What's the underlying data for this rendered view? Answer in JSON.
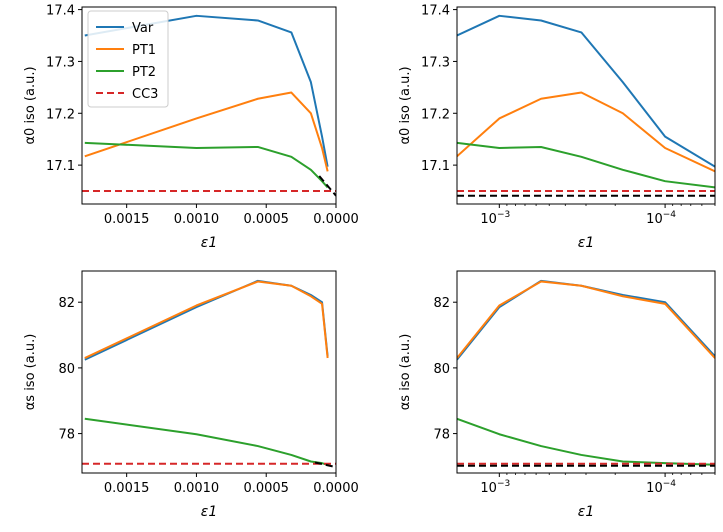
{
  "chart_data": [
    {
      "type": "line",
      "panel": "top-left",
      "xlabel": "ε1",
      "ylabel": "α0 iso (a.u.)",
      "xscale": "linear",
      "xlim": [
        0.00182,
        0.0
      ],
      "ylim": [
        17.025,
        17.405
      ],
      "xticks": [
        0.0015,
        0.001,
        0.0005,
        0.0
      ],
      "xticklabels": [
        "0.0015",
        "0.0010",
        "0.0005",
        "0.0000"
      ],
      "yticks": [
        17.1,
        17.2,
        17.3,
        17.4
      ],
      "yticklabels": [
        "17.1",
        "17.2",
        "17.3",
        "17.4"
      ],
      "legend": "upper-left",
      "series": [
        {
          "name": "Var",
          "color": "#1f77b4",
          "style": "solid",
          "x": [
            0.0018,
            0.001,
            0.00056,
            0.00032,
            0.00018,
            0.0001,
            6e-05
          ],
          "y": [
            17.35,
            17.388,
            17.379,
            17.356,
            17.26,
            17.155,
            17.097
          ]
        },
        {
          "name": "PT1",
          "color": "#ff7f0e",
          "style": "solid",
          "x": [
            0.0018,
            0.001,
            0.00056,
            0.00032,
            0.00018,
            0.0001,
            6e-05
          ],
          "y": [
            17.117,
            17.19,
            17.228,
            17.24,
            17.2,
            17.133,
            17.088
          ]
        },
        {
          "name": "PT2",
          "color": "#2ca02c",
          "style": "solid",
          "x": [
            0.0018,
            0.001,
            0.00056,
            0.00032,
            0.00018,
            0.0001,
            6e-05
          ],
          "y": [
            17.143,
            17.133,
            17.135,
            17.116,
            17.091,
            17.069,
            17.057
          ]
        },
        {
          "name": "CC3",
          "color": "#d62728",
          "style": "dashed",
          "x": [
            0.00182,
            0.0
          ],
          "y": [
            17.05,
            17.05
          ]
        },
        {
          "name": "",
          "color": "#000000",
          "style": "dashed",
          "x": [
            0.00012,
            0.0
          ],
          "y": [
            17.079,
            17.041
          ]
        }
      ]
    },
    {
      "type": "line",
      "panel": "top-right",
      "xlabel": "ε1",
      "ylabel": "α0 iso (a.u.)",
      "xscale": "log",
      "xlim": [
        0.0018,
        5e-05
      ],
      "ylim": [
        17.025,
        17.405
      ],
      "xticks": [
        0.001,
        0.0001
      ],
      "xticklabels": [
        "−3",
        "−4"
      ],
      "yticks": [
        17.1,
        17.2,
        17.3,
        17.4
      ],
      "yticklabels": [
        "17.1",
        "17.2",
        "17.3",
        "17.4"
      ],
      "series": [
        {
          "name": "Var",
          "color": "#1f77b4",
          "style": "solid",
          "x": [
            0.0018,
            0.001,
            0.00056,
            0.00032,
            0.00018,
            0.0001,
            5e-05
          ],
          "y": [
            17.35,
            17.388,
            17.379,
            17.356,
            17.26,
            17.155,
            17.097
          ]
        },
        {
          "name": "PT1",
          "color": "#ff7f0e",
          "style": "solid",
          "x": [
            0.0018,
            0.001,
            0.00056,
            0.00032,
            0.00018,
            0.0001,
            5e-05
          ],
          "y": [
            17.117,
            17.19,
            17.228,
            17.24,
            17.2,
            17.133,
            17.088
          ]
        },
        {
          "name": "PT2",
          "color": "#2ca02c",
          "style": "solid",
          "x": [
            0.0018,
            0.001,
            0.00056,
            0.00032,
            0.00018,
            0.0001,
            5e-05
          ],
          "y": [
            17.143,
            17.133,
            17.135,
            17.116,
            17.091,
            17.069,
            17.057
          ]
        },
        {
          "name": "CC3",
          "color": "#d62728",
          "style": "dashed",
          "x": [
            0.0018,
            5e-05
          ],
          "y": [
            17.05,
            17.05
          ]
        },
        {
          "name": "",
          "color": "#000000",
          "style": "dashed",
          "x": [
            0.0018,
            5e-05
          ],
          "y": [
            17.041,
            17.041
          ]
        }
      ]
    },
    {
      "type": "line",
      "panel": "bottom-left",
      "xlabel": "ε1",
      "ylabel": "αs iso (a.u.)",
      "xscale": "linear",
      "xlim": [
        0.00182,
        0.0
      ],
      "ylim": [
        76.8,
        82.95
      ],
      "xticks": [
        0.0015,
        0.001,
        0.0005,
        0.0
      ],
      "xticklabels": [
        "0.0015",
        "0.0010",
        "0.0005",
        "0.0000"
      ],
      "yticks": [
        78,
        80,
        82
      ],
      "yticklabels": [
        "78",
        "80",
        "82"
      ],
      "series": [
        {
          "name": "Var",
          "color": "#1f77b4",
          "style": "solid",
          "x": [
            0.0018,
            0.001,
            0.00056,
            0.00032,
            0.00018,
            0.0001,
            6e-05
          ],
          "y": [
            80.25,
            81.85,
            82.65,
            82.5,
            82.22,
            82.0,
            80.35
          ]
        },
        {
          "name": "PT1",
          "color": "#ff7f0e",
          "style": "solid",
          "x": [
            0.0018,
            0.001,
            0.00056,
            0.00032,
            0.00018,
            0.0001,
            6e-05
          ],
          "y": [
            80.3,
            81.9,
            82.63,
            82.5,
            82.18,
            81.95,
            80.3
          ]
        },
        {
          "name": "PT2",
          "color": "#2ca02c",
          "style": "solid",
          "x": [
            0.0018,
            0.001,
            0.00056,
            0.00032,
            0.00018,
            0.0001,
            6e-05
          ],
          "y": [
            78.45,
            77.98,
            77.62,
            77.35,
            77.15,
            77.1,
            77.05
          ]
        },
        {
          "name": "CC3",
          "color": "#d62728",
          "style": "dashed",
          "x": [
            0.00182,
            0.0
          ],
          "y": [
            77.08,
            77.08
          ]
        },
        {
          "name": "",
          "color": "#000000",
          "style": "dashed",
          "x": [
            0.00015,
            0.0
          ],
          "y": [
            77.12,
            76.98
          ]
        }
      ]
    },
    {
      "type": "line",
      "panel": "bottom-right",
      "xlabel": "ε1",
      "ylabel": "αs iso (a.u.)",
      "xscale": "log",
      "xlim": [
        0.0018,
        5e-05
      ],
      "ylim": [
        76.8,
        82.95
      ],
      "xticks": [
        0.001,
        0.0001
      ],
      "xticklabels": [
        "−3",
        "−4"
      ],
      "yticks": [
        78,
        80,
        82
      ],
      "yticklabels": [
        "78",
        "80",
        "82"
      ],
      "series": [
        {
          "name": "Var",
          "color": "#1f77b4",
          "style": "solid",
          "x": [
            0.0018,
            0.001,
            0.00056,
            0.00032,
            0.00018,
            0.0001,
            5e-05
          ],
          "y": [
            80.25,
            81.85,
            82.65,
            82.5,
            82.22,
            82.0,
            80.35
          ]
        },
        {
          "name": "PT1",
          "color": "#ff7f0e",
          "style": "solid",
          "x": [
            0.0018,
            0.001,
            0.00056,
            0.00032,
            0.00018,
            0.0001,
            5e-05
          ],
          "y": [
            80.3,
            81.9,
            82.63,
            82.5,
            82.18,
            81.95,
            80.3
          ]
        },
        {
          "name": "PT2",
          "color": "#2ca02c",
          "style": "solid",
          "x": [
            0.0018,
            0.001,
            0.00056,
            0.00032,
            0.00018,
            0.0001,
            5e-05
          ],
          "y": [
            78.45,
            77.98,
            77.62,
            77.35,
            77.15,
            77.1,
            77.05
          ]
        },
        {
          "name": "CC3",
          "color": "#d62728",
          "style": "dashed",
          "x": [
            0.0018,
            5e-05
          ],
          "y": [
            77.08,
            77.08
          ]
        },
        {
          "name": "",
          "color": "#000000",
          "style": "dashed",
          "x": [
            0.0018,
            5e-05
          ],
          "y": [
            77.02,
            77.02
          ]
        }
      ]
    }
  ]
}
